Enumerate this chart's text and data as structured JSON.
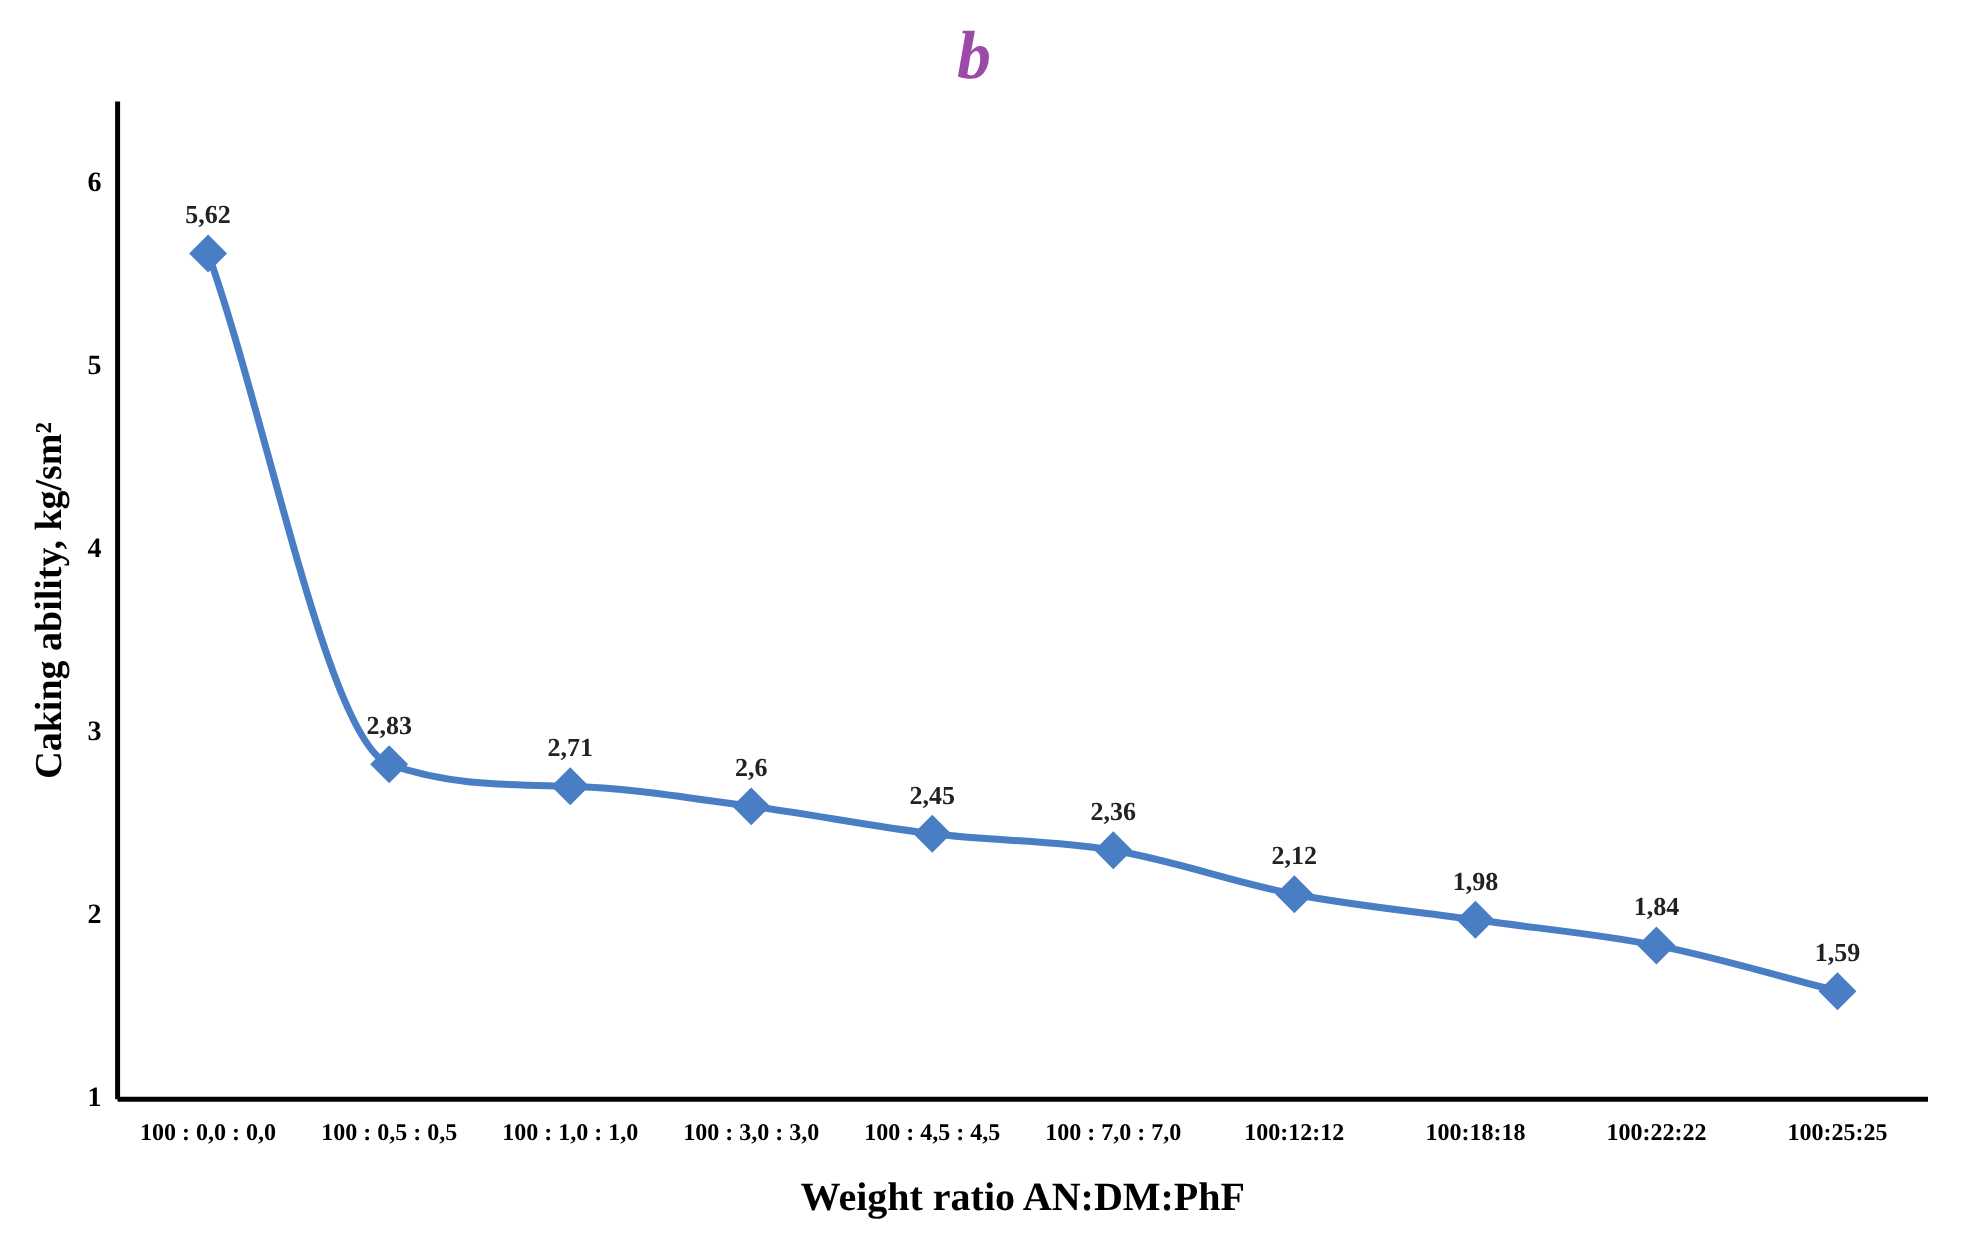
{
  "chart_data": {
    "type": "line",
    "title": "b",
    "xlabel": "Weight ratio AN:DM:PhF",
    "ylabel": "Caking ability, kg/sm²",
    "categories": [
      "100 : 0,0 : 0,0",
      "100 : 0,5 : 0,5",
      "100 : 1,0 : 1,0",
      "100 : 3,0 : 3,0",
      "100 : 4,5 : 4,5",
      "100 : 7,0 : 7,0",
      "100:12:12",
      "100:18:18",
      "100:22:22",
      "100:25:25"
    ],
    "series": [
      {
        "color": "#4a7ec4",
        "values": [
          5.62,
          2.83,
          2.71,
          2.6,
          2.45,
          2.36,
          2.12,
          1.98,
          1.84,
          1.59
        ],
        "value_labels": [
          "5,62",
          "2,83",
          "2,71",
          "2,6",
          "2,45",
          "2,36",
          "2,12",
          "1,98",
          "1,84",
          "1,59"
        ]
      }
    ],
    "ylim": [
      1,
      6.45
    ],
    "yticks": [
      1,
      2,
      3,
      4,
      5,
      6
    ],
    "grid": false,
    "legend": false,
    "marker": "diamond",
    "line_style": "solid"
  }
}
